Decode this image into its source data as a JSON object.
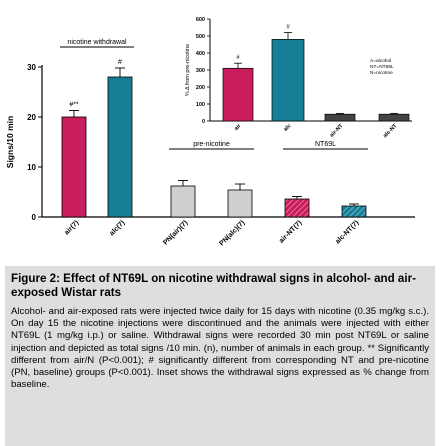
{
  "chart_data": [
    {
      "type": "bar",
      "ylabel": "Signs/10 min",
      "ylim": [
        0,
        30
      ],
      "yticks": [
        0,
        10,
        20,
        30
      ],
      "categories": [
        "air(7)",
        "alc(7)",
        "PN(air)(7)",
        "PN(alc)(7)",
        "air-NT(7)",
        "alc-NT(7)"
      ],
      "values": [
        20,
        28,
        6.2,
        5.4,
        3.6,
        2.2
      ],
      "errors": [
        1.3,
        1.8,
        1.1,
        1.2,
        0.5,
        0.4
      ],
      "colors": [
        "#c81e5e",
        "#177e97",
        "#cfcfcf",
        "#cfcfcf",
        "#c81e5e",
        "#177e97"
      ],
      "patterns": [
        "solid",
        "solid",
        "solid",
        "solid",
        "hatched",
        "hatched"
      ],
      "annotations": [
        {
          "bar": 0,
          "text": "#**"
        },
        {
          "bar": 1,
          "text": "#"
        }
      ],
      "groups": [
        {
          "label": "nicotine withdrawal",
          "bars": [
            0,
            1
          ]
        },
        {
          "label": "pre-nicotine",
          "bars": [
            2,
            3
          ]
        },
        {
          "label": "NT69L",
          "bars": [
            4,
            5
          ]
        }
      ],
      "grid": false
    },
    {
      "type": "bar",
      "ylabel": "% Δ from pre-nicotine",
      "ylim": [
        0,
        600
      ],
      "yticks": [
        0,
        100,
        200,
        300,
        400,
        500,
        600
      ],
      "categories": [
        "air",
        "alc",
        "air-NT",
        "alc-NT"
      ],
      "values": [
        310,
        480,
        40,
        40
      ],
      "errors": [
        30,
        40,
        5,
        5
      ],
      "colors": [
        "#c81e5e",
        "#177e97",
        "#444444",
        "#444444"
      ],
      "annotations": [
        {
          "bar": 0,
          "text": "#"
        },
        {
          "bar": 1,
          "text": "#"
        }
      ],
      "legend": [
        "A=alcohol",
        "NT=NT69L",
        "N=nicotine"
      ],
      "legend_position": "right",
      "grid": false
    }
  ],
  "caption": {
    "title": "Figure 2: Effect of NT69L on nicotine withdrawal signs in alcohol- and air-exposed Wistar rats",
    "text": "Alcohol- and air-exposed rats were injected twice daily for 15 days with nicotine (0.35 mg/kg s.c.). On day 15 the nicotine injections were discontinued and the animals were injected with either NT69L (1 mg/kg i.p.) or saline. Withdrawal signs were recorded 30 min post NT69L or saline injection and depicted as total signs /10 min. (n), number of animals in each group. ** Significantly different from air/N (P<0.001); # significantly different from corresponding NT and pre-nicotine (PN, baseline) groups (P<0.001). Inset shows the withdrawal signs expressed as % change from baseline."
  }
}
